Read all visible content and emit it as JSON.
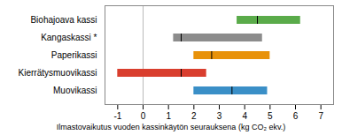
{
  "chart_data": {
    "type": "floating_bar",
    "orientation": "horizontal",
    "categories": [
      "Muovikassi",
      "Kierrätysmuovikassi",
      "Paperikassi",
      "Kangaskassi *",
      "Biohajoava kassi"
    ],
    "starts": [
      2.0,
      -1.0,
      2.0,
      1.2,
      3.7
    ],
    "ends": [
      4.9,
      2.5,
      5.0,
      4.7,
      6.2
    ],
    "lines": [
      3.5,
      1.5,
      2.7,
      1.5,
      4.5
    ],
    "colors": [
      "#3a8fc7",
      "#d93e2e",
      "#e8920a",
      "#8c8c8c",
      "#5aab4a"
    ],
    "reference_x": 0,
    "xlim": [
      -1.5,
      7.5
    ],
    "xticks": [
      -1,
      0,
      1,
      2,
      3,
      4,
      5,
      6,
      7
    ],
    "xlabel": "Ilmastovaikutus vuoden kassinkäytön seurauksena (kg CO₂ ekv.)",
    "grid": false
  }
}
